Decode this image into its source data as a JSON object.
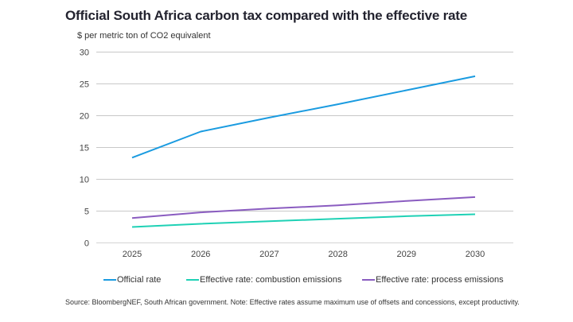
{
  "chart_data": {
    "type": "line",
    "title": "Official South Africa carbon tax compared with the effective rate",
    "ylabel": "$ per metric ton of CO2 equivalent",
    "xlabel": "",
    "x": [
      "2025",
      "2026",
      "2027",
      "2028",
      "2029",
      "2030"
    ],
    "ylim": [
      0,
      30
    ],
    "yticks": [
      0,
      5,
      10,
      15,
      20,
      25,
      30
    ],
    "grid": true,
    "legend_position": "bottom",
    "series": [
      {
        "name": "Official rate",
        "color": "#1a9be0",
        "values": [
          13.4,
          17.5,
          19.7,
          21.8,
          24.0,
          26.2
        ]
      },
      {
        "name": "Effective rate: combustion emissions",
        "color": "#1fd1b5",
        "values": [
          2.5,
          3.0,
          3.4,
          3.8,
          4.2,
          4.5
        ]
      },
      {
        "name": "Effective rate: process emissions",
        "color": "#8a5cc0",
        "values": [
          3.9,
          4.8,
          5.4,
          5.9,
          6.6,
          7.2
        ]
      }
    ],
    "source": "Source: BloombergNEF, South African government. Note: Effective rates assume maximum use of offsets and concessions, except productivity."
  }
}
